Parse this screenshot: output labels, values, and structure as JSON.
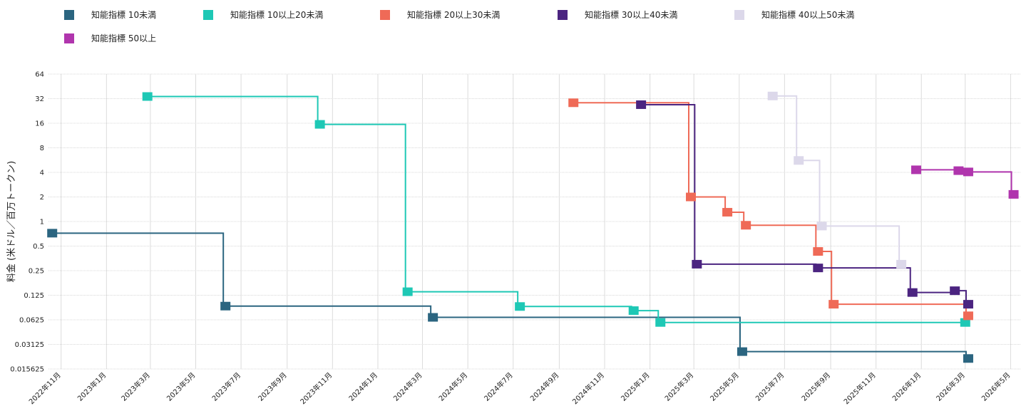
{
  "chart_data": {
    "type": "line",
    "step": "post",
    "ylabel": "料金 (米ドル／百万トークン)",
    "yscale": "log2",
    "ylim": [
      0.015625,
      64
    ],
    "yticks": [
      {
        "value": 64,
        "label": "64"
      },
      {
        "value": 32,
        "label": "32"
      },
      {
        "value": 16,
        "label": "16"
      },
      {
        "value": 8,
        "label": "8"
      },
      {
        "value": 4,
        "label": "4"
      },
      {
        "value": 2,
        "label": "2"
      },
      {
        "value": 1,
        "label": "1"
      },
      {
        "value": 0.5,
        "label": "0.5"
      },
      {
        "value": 0.25,
        "label": "0.25"
      },
      {
        "value": 0.125,
        "label": "0.125"
      },
      {
        "value": 0.0625,
        "label": "0.0625"
      },
      {
        "value": 0.03125,
        "label": "0.03125"
      },
      {
        "value": 0.015625,
        "label": "0.015625"
      }
    ],
    "xlim": [
      "2022-10-15",
      "2026-05-15"
    ],
    "xticks": [
      {
        "date": "2022-11-01",
        "label": "2022年11月"
      },
      {
        "date": "2023-01-01",
        "label": "2023年1月"
      },
      {
        "date": "2023-03-01",
        "label": "2023年3月"
      },
      {
        "date": "2023-05-01",
        "label": "2023年5月"
      },
      {
        "date": "2023-07-01",
        "label": "2023年7月"
      },
      {
        "date": "2023-09-01",
        "label": "2023年9月"
      },
      {
        "date": "2023-11-01",
        "label": "2023年11月"
      },
      {
        "date": "2024-01-01",
        "label": "2024年1月"
      },
      {
        "date": "2024-03-01",
        "label": "2024年3月"
      },
      {
        "date": "2024-05-01",
        "label": "2024年5月"
      },
      {
        "date": "2024-07-01",
        "label": "2024年7月"
      },
      {
        "date": "2024-09-01",
        "label": "2024年9月"
      },
      {
        "date": "2024-11-01",
        "label": "2024年11月"
      },
      {
        "date": "2025-01-01",
        "label": "2025年1月"
      },
      {
        "date": "2025-03-01",
        "label": "2025年3月"
      },
      {
        "date": "2025-05-01",
        "label": "2025年5月"
      },
      {
        "date": "2025-07-01",
        "label": "2025年7月"
      },
      {
        "date": "2025-09-01",
        "label": "2025年9月"
      },
      {
        "date": "2025-11-01",
        "label": "2025年11月"
      },
      {
        "date": "2026-01-01",
        "label": "2026年1月"
      },
      {
        "date": "2026-03-01",
        "label": "2026年3月"
      },
      {
        "date": "2026-05-01",
        "label": "2026年5月"
      }
    ],
    "grid": true,
    "legend_position": "top",
    "series": [
      {
        "name": "知能指標 10未満",
        "color": "#2b6580",
        "points": [
          {
            "x": "2022-10-20",
            "y": 0.72
          },
          {
            "x": "2023-06-10",
            "y": 0.092
          },
          {
            "x": "2024-03-15",
            "y": 0.067
          },
          {
            "x": "2025-05-05",
            "y": 0.0255
          },
          {
            "x": "2026-03-05",
            "y": 0.021
          }
        ]
      },
      {
        "name": "知能指標 10以上20未満",
        "color": "#1ec8b5",
        "points": [
          {
            "x": "2023-02-25",
            "y": 34
          },
          {
            "x": "2023-10-15",
            "y": 15.5
          },
          {
            "x": "2024-02-10",
            "y": 0.138
          },
          {
            "x": "2024-07-10",
            "y": 0.091
          },
          {
            "x": "2024-12-10",
            "y": 0.081
          },
          {
            "x": "2025-01-15",
            "y": 0.058
          },
          {
            "x": "2026-03-01",
            "y": 0.058
          }
        ]
      },
      {
        "name": "知能指標 20以上30未満",
        "color": "#ef6a57",
        "points": [
          {
            "x": "2024-09-20",
            "y": 28.5
          },
          {
            "x": "2025-02-25",
            "y": 2.0
          },
          {
            "x": "2025-04-15",
            "y": 1.3
          },
          {
            "x": "2025-05-10",
            "y": 0.9
          },
          {
            "x": "2025-08-15",
            "y": 0.43
          },
          {
            "x": "2025-09-05",
            "y": 0.097
          },
          {
            "x": "2026-03-05",
            "y": 0.07
          }
        ]
      },
      {
        "name": "知能指標 30以上40未満",
        "color": "#4b2480",
        "points": [
          {
            "x": "2024-12-20",
            "y": 27
          },
          {
            "x": "2025-03-05",
            "y": 0.3
          },
          {
            "x": "2025-08-15",
            "y": 0.27
          },
          {
            "x": "2025-12-20",
            "y": 0.135
          },
          {
            "x": "2026-02-15",
            "y": 0.142
          },
          {
            "x": "2026-03-05",
            "y": 0.097
          }
        ]
      },
      {
        "name": "知能指標 40以上50未満",
        "color": "#dcd8ea",
        "points": [
          {
            "x": "2025-06-15",
            "y": 34.5
          },
          {
            "x": "2025-07-20",
            "y": 5.6
          },
          {
            "x": "2025-08-20",
            "y": 0.88
          },
          {
            "x": "2025-12-05",
            "y": 0.3
          }
        ]
      },
      {
        "name": "知能指標 50以上",
        "color": "#b035ad",
        "points": [
          {
            "x": "2025-12-25",
            "y": 4.3
          },
          {
            "x": "2026-02-20",
            "y": 4.2
          },
          {
            "x": "2026-03-05",
            "y": 4.05
          },
          {
            "x": "2026-05-05",
            "y": 2.15
          }
        ]
      }
    ]
  }
}
